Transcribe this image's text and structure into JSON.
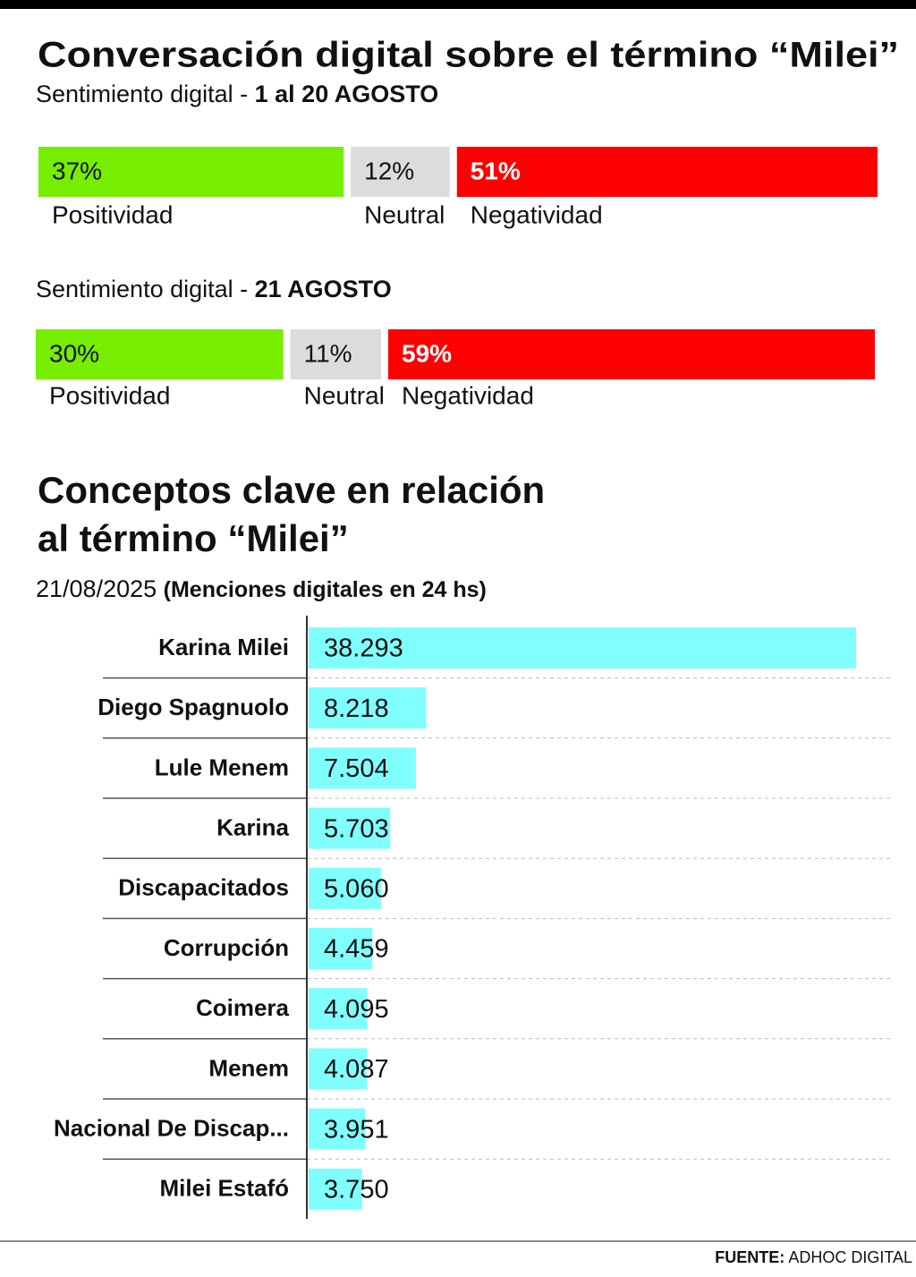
{
  "title": "Conversación digital sobre el término “Milei”",
  "source": {
    "label": "FUENTE:",
    "text": "ADHOC DIGITAL"
  },
  "chart_data": [
    {
      "type": "stacked-bar",
      "subtitle_prefix": "Sentimiento digital -",
      "subtitle": "1 al 20 AGOSTO",
      "series": [
        {
          "name": "Positividad",
          "color": "#77ee00",
          "values": [
            37
          ],
          "value_labels": [
            "37%"
          ]
        },
        {
          "name": "Neutral",
          "color": "#dcdcdc",
          "values": [
            12
          ],
          "value_labels": [
            "12%"
          ]
        },
        {
          "name": "Negatividad",
          "color": "#ff0000",
          "values": [
            51
          ],
          "value_labels": [
            "51%"
          ]
        }
      ]
    },
    {
      "type": "stacked-bar",
      "subtitle_prefix": "Sentimiento digital -",
      "subtitle": "21 AGOSTO",
      "series": [
        {
          "name": "Positividad",
          "color": "#77ee00",
          "values": [
            30
          ],
          "value_labels": [
            "30%"
          ]
        },
        {
          "name": "Neutral",
          "color": "#dcdcdc",
          "values": [
            11
          ],
          "value_labels": [
            "11%"
          ]
        },
        {
          "name": "Negatividad",
          "color": "#ff0000",
          "values": [
            59
          ],
          "value_labels": [
            "59%"
          ]
        }
      ]
    },
    {
      "type": "hbar",
      "title_lines": [
        "Conceptos clave en relación",
        "al término “Milei”"
      ],
      "date": "21/08/2025",
      "subtitle": "(Menciones digitales en 24 hs)",
      "color": "#80ffff",
      "categories": [
        "Karina Milei",
        "Diego Spagnuolo",
        "Lule Menem",
        "Karina",
        "Discapacitados",
        "Corrupción",
        "Coimera",
        "Menem",
        "Nacional De Discap...",
        "Milei Estafó"
      ],
      "values": [
        38293,
        8218,
        7504,
        5703,
        5060,
        4459,
        4095,
        4087,
        3951,
        3750
      ],
      "value_labels": [
        "38.293",
        "8.218",
        "7.504",
        "5.703",
        "5.060",
        "4.459",
        "4.095",
        "4.087",
        "3.951",
        "3.750"
      ]
    }
  ]
}
